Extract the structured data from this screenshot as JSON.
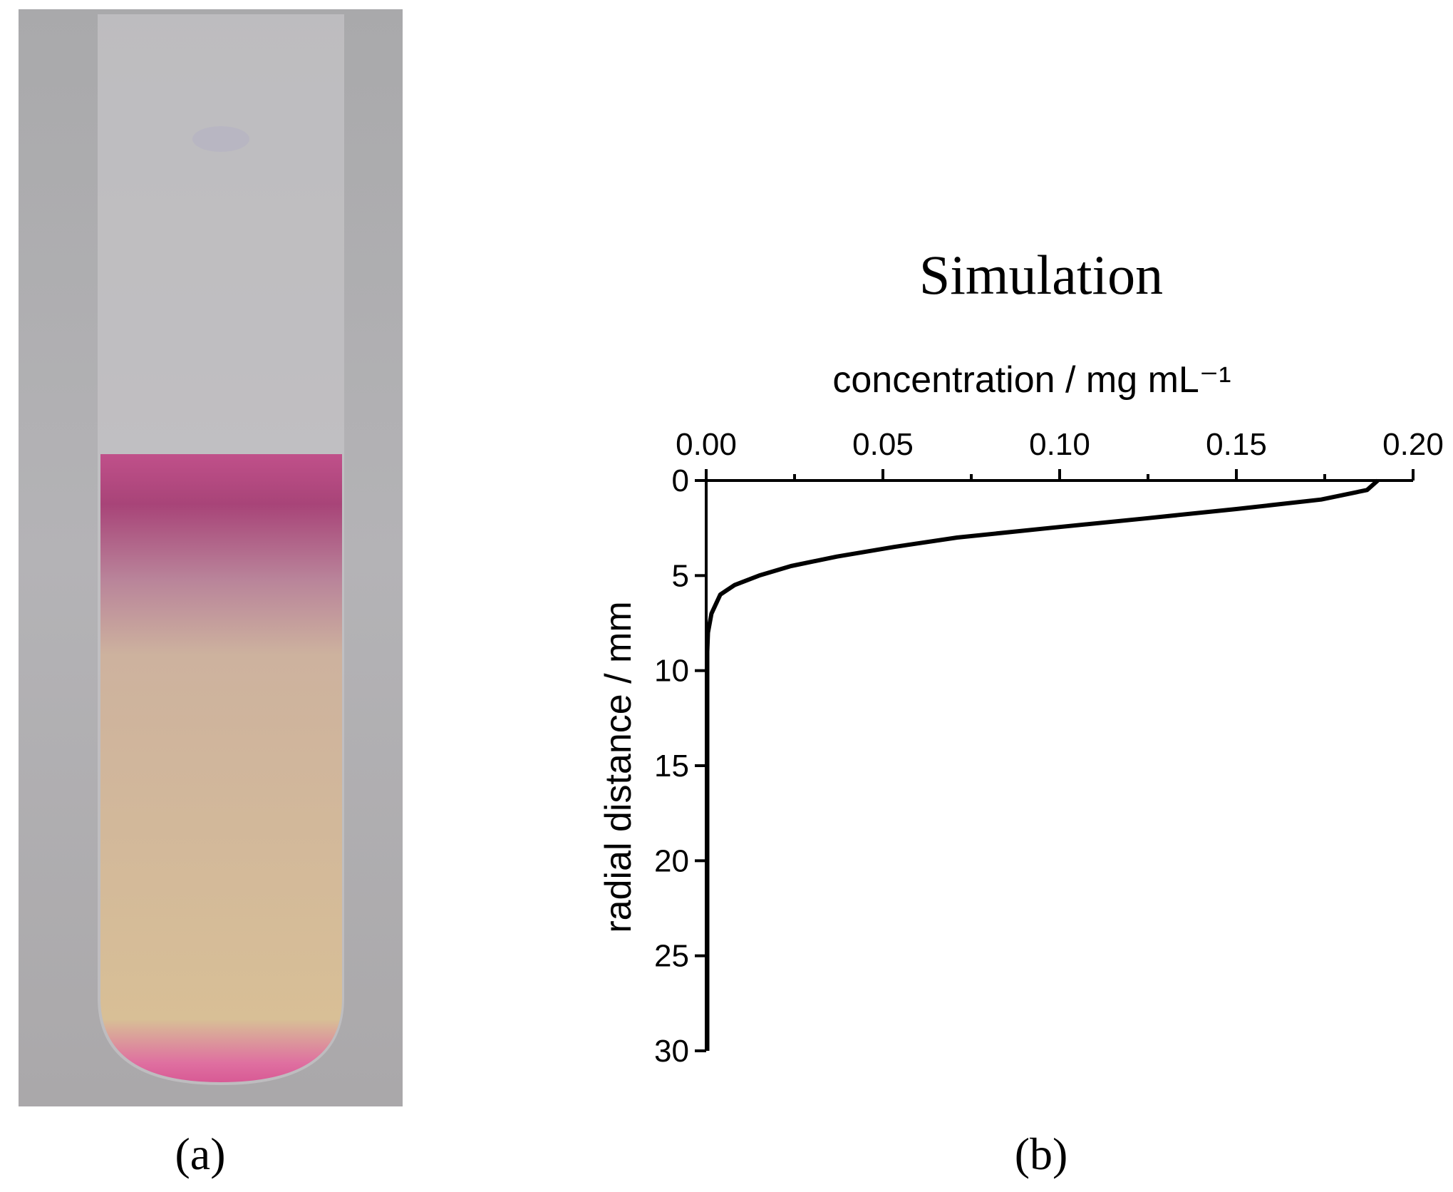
{
  "panel_labels": [
    "(a)",
    "(b)"
  ],
  "chart_data": {
    "type": "line",
    "title": "Simulation",
    "x_label": "concentration / mg mL⁻¹",
    "y_label": "radial distance / mm",
    "x_axis_position": "top",
    "y_reversed": true,
    "color": "#000000",
    "xlim": [
      0,
      0.2
    ],
    "xticks": [
      {
        "value": 0,
        "label": "0.00"
      },
      0.05,
      {
        "value": 0.1,
        "label": "0.10"
      },
      0.15,
      {
        "value": 0.2,
        "label": "0.20"
      }
    ],
    "ylim": [
      0,
      30
    ],
    "yticks": [
      0,
      5,
      10,
      15,
      20,
      25,
      30
    ],
    "x": [
      0.19,
      0.187,
      0.174,
      0.15,
      0.124,
      0.097,
      0.071,
      0.053,
      0.037,
      0.024,
      0.015,
      0.008,
      0.004,
      0.0015,
      0.0005,
      0.0003,
      0.0003,
      0.0003,
      0.0003,
      0.0003,
      0.0003,
      0.0003
    ],
    "y": [
      0,
      0.5,
      1,
      1.5,
      2,
      2.5,
      3,
      3.5,
      4,
      4.5,
      5,
      5.5,
      6,
      7,
      8,
      9,
      10,
      15,
      20,
      25,
      28,
      30
    ]
  }
}
